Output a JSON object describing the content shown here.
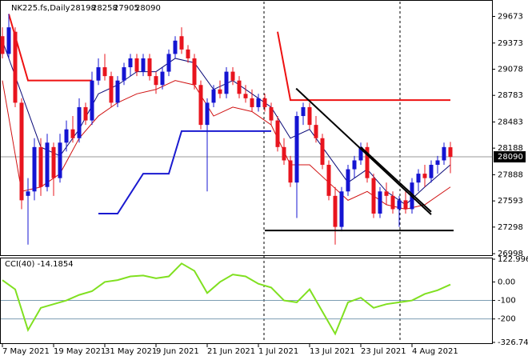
{
  "chart_data": [
    {
      "type": "candlestick",
      "title": "NK225.fs,Daily",
      "header_values": [
        28198,
        28258,
        27905,
        28090
      ],
      "categories": [
        "7 May 2021",
        null,
        null,
        null,
        null,
        null,
        null,
        null,
        "19 May 2021",
        null,
        null,
        null,
        null,
        null,
        null,
        null,
        "31 May 2021",
        null,
        null,
        null,
        null,
        null,
        null,
        null,
        "9 Jun 2021",
        null,
        null,
        null,
        null,
        null,
        null,
        null,
        "21 Jun 2021",
        null,
        null,
        null,
        null,
        null,
        null,
        null,
        "1 Jul 2021",
        null,
        null,
        null,
        null,
        null,
        null,
        null,
        "13 Jul 2021",
        null,
        null,
        null,
        null,
        null,
        null,
        null,
        "23 Jul 2021",
        null,
        null,
        null,
        null,
        null,
        null,
        null,
        "4 Aug 2021",
        null,
        null,
        null,
        null,
        null,
        null
      ],
      "open": [
        29450,
        29250,
        29500,
        28700,
        27650,
        27700,
        28200,
        27750,
        28200,
        27850,
        28250,
        28400,
        28300,
        28650,
        28500,
        28950,
        29100,
        29000,
        28700,
        28950,
        29100,
        29200,
        29050,
        29200,
        29000,
        28900,
        29050,
        29250,
        29450,
        29300,
        29200,
        28900,
        28450,
        28700,
        28850,
        28800,
        29050,
        28950,
        28800,
        28750,
        28650,
        28750,
        28650,
        28500,
        28200,
        28050,
        27800,
        28550,
        28650,
        28450,
        28300,
        28000,
        27650,
        27300,
        27700,
        27950,
        28050,
        28200,
        27850,
        27450,
        27700,
        27650,
        27500,
        27600,
        27500,
        27800,
        27900,
        27850,
        28000,
        28050,
        28198
      ],
      "high": [
        29550,
        29700,
        29550,
        28750,
        27850,
        28300,
        28300,
        28350,
        28250,
        28350,
        28500,
        28550,
        28750,
        28700,
        29050,
        29200,
        29250,
        29050,
        29000,
        29150,
        29250,
        29250,
        29250,
        29250,
        29050,
        29100,
        29300,
        29450,
        29550,
        29350,
        29250,
        28950,
        28750,
        28900,
        28950,
        29100,
        29100,
        29000,
        28900,
        28850,
        28800,
        28800,
        28700,
        28550,
        28300,
        28100,
        28600,
        28700,
        28700,
        28550,
        28350,
        28050,
        27750,
        27750,
        28000,
        28100,
        28250,
        28250,
        27900,
        27750,
        27800,
        27700,
        27650,
        27700,
        27850,
        27950,
        28000,
        28050,
        28100,
        28250,
        28258
      ],
      "low": [
        29200,
        29200,
        28650,
        27500,
        27100,
        27600,
        27650,
        27700,
        27650,
        27800,
        28150,
        28250,
        28250,
        28450,
        28450,
        28900,
        28950,
        28650,
        28650,
        28900,
        29000,
        29000,
        29000,
        28950,
        28800,
        28850,
        29000,
        29200,
        29250,
        29150,
        28850,
        28400,
        27700,
        28650,
        28750,
        28750,
        28900,
        28750,
        28700,
        28600,
        28600,
        28600,
        28450,
        28150,
        28000,
        27750,
        27400,
        28450,
        28400,
        28250,
        27950,
        27600,
        27100,
        27250,
        27650,
        27850,
        28000,
        27800,
        27400,
        27400,
        27550,
        27450,
        27300,
        27450,
        27450,
        27700,
        27750,
        27800,
        27900,
        28000,
        27905
      ],
      "close": [
        29250,
        29550,
        28700,
        27600,
        27700,
        28200,
        27750,
        28250,
        27850,
        28250,
        28400,
        28300,
        28650,
        28500,
        28950,
        29100,
        29000,
        28700,
        28950,
        29100,
        29200,
        29050,
        29200,
        29000,
        28900,
        29050,
        29250,
        29400,
        29300,
        29200,
        28900,
        28450,
        28700,
        28850,
        28800,
        29050,
        28950,
        28800,
        28750,
        28650,
        28750,
        28650,
        28500,
        28200,
        28050,
        27800,
        28550,
        28650,
        28450,
        28300,
        28000,
        27650,
        27300,
        27700,
        27950,
        28050,
        28200,
        27850,
        27450,
        27700,
        27650,
        27500,
        27600,
        27500,
        27800,
        27900,
        27850,
        28000,
        28050,
        28200,
        28090
      ],
      "up_color": "#1414d2",
      "down_color": "#e8141e",
      "ylim": [
        26990,
        29840
      ],
      "yticks": [
        29673,
        29373,
        29078,
        28783,
        28483,
        28188,
        27888,
        27593,
        27298,
        26998
      ],
      "last_price": 28090,
      "overlays": [
        {
          "color": "#0a0a78",
          "width": 1,
          "x": [
            0,
            3,
            6,
            9,
            12,
            15,
            18,
            21,
            24,
            27,
            30,
            33,
            36,
            39,
            42,
            45,
            48,
            51,
            54,
            57,
            60,
            63,
            66,
            70
          ],
          "values": [
            29400,
            28800,
            28200,
            28100,
            28400,
            28800,
            28900,
            29050,
            29050,
            29200,
            29150,
            28850,
            28950,
            28800,
            28650,
            28300,
            28400,
            28100,
            27800,
            27950,
            27700,
            27550,
            27750,
            28000
          ]
        },
        {
          "color": "#d01010",
          "width": 1,
          "x": [
            0,
            3,
            6,
            9,
            12,
            15,
            18,
            21,
            24,
            27,
            30,
            33,
            36,
            39,
            42,
            45,
            48,
            51,
            54,
            57,
            60,
            63,
            66,
            70
          ],
          "values": [
            28950,
            27700,
            27750,
            27900,
            28300,
            28550,
            28700,
            28800,
            28850,
            28950,
            28900,
            28550,
            28650,
            28600,
            28450,
            28000,
            28000,
            27800,
            27600,
            27700,
            27550,
            27500,
            27550,
            27750
          ]
        },
        {
          "color": "#ee1111",
          "width": 2,
          "x": [
            1,
            4,
            14
          ],
          "values": [
            29700,
            28950,
            28950
          ]
        },
        {
          "color": "#ee1111",
          "width": 2,
          "x": [
            43,
            45,
            70
          ],
          "values": [
            29500,
            28730,
            28730
          ]
        },
        {
          "color": "#1a1ad0",
          "width": 2,
          "x": [
            15,
            18,
            22,
            26,
            28,
            42
          ],
          "values": [
            27450,
            27450,
            27900,
            27900,
            28380,
            28380
          ]
        }
      ],
      "trendlines": [
        {
          "x": [
            45.9,
            67
          ],
          "values": [
            28860,
            27440
          ]
        },
        {
          "x": [
            56,
            67
          ],
          "values": [
            28200,
            27470
          ]
        },
        {
          "x": [
            41,
            70.5
          ],
          "values": [
            27260,
            27260
          ]
        }
      ]
    },
    {
      "type": "line",
      "title": "CCI(40) -14.1854",
      "color": "#80e020",
      "x": [
        0,
        2,
        4,
        6,
        8,
        10,
        12,
        14,
        16,
        18,
        20,
        22,
        24,
        26,
        28,
        30,
        32,
        34,
        36,
        38,
        40,
        42,
        44,
        46,
        48,
        50,
        52,
        54,
        56,
        58,
        60,
        62,
        64,
        66,
        68,
        70
      ],
      "values": [
        10,
        -40,
        -260,
        -140,
        -120,
        -100,
        -70,
        -50,
        0,
        10,
        30,
        35,
        20,
        30,
        100,
        60,
        -60,
        0,
        40,
        30,
        -10,
        -30,
        -100,
        -110,
        -40,
        -160,
        -280,
        -110,
        -85,
        -140,
        -120,
        -110,
        -100,
        -65,
        -45,
        -14.1854
      ],
      "ylim": [
        -326.744,
        122.9967
      ],
      "yticks": [
        122.9967,
        {
          "value": 0,
          "label": "0.00"
        },
        -100,
        -200,
        -326.744
      ],
      "level_lines": [
        -100,
        -200
      ]
    }
  ]
}
